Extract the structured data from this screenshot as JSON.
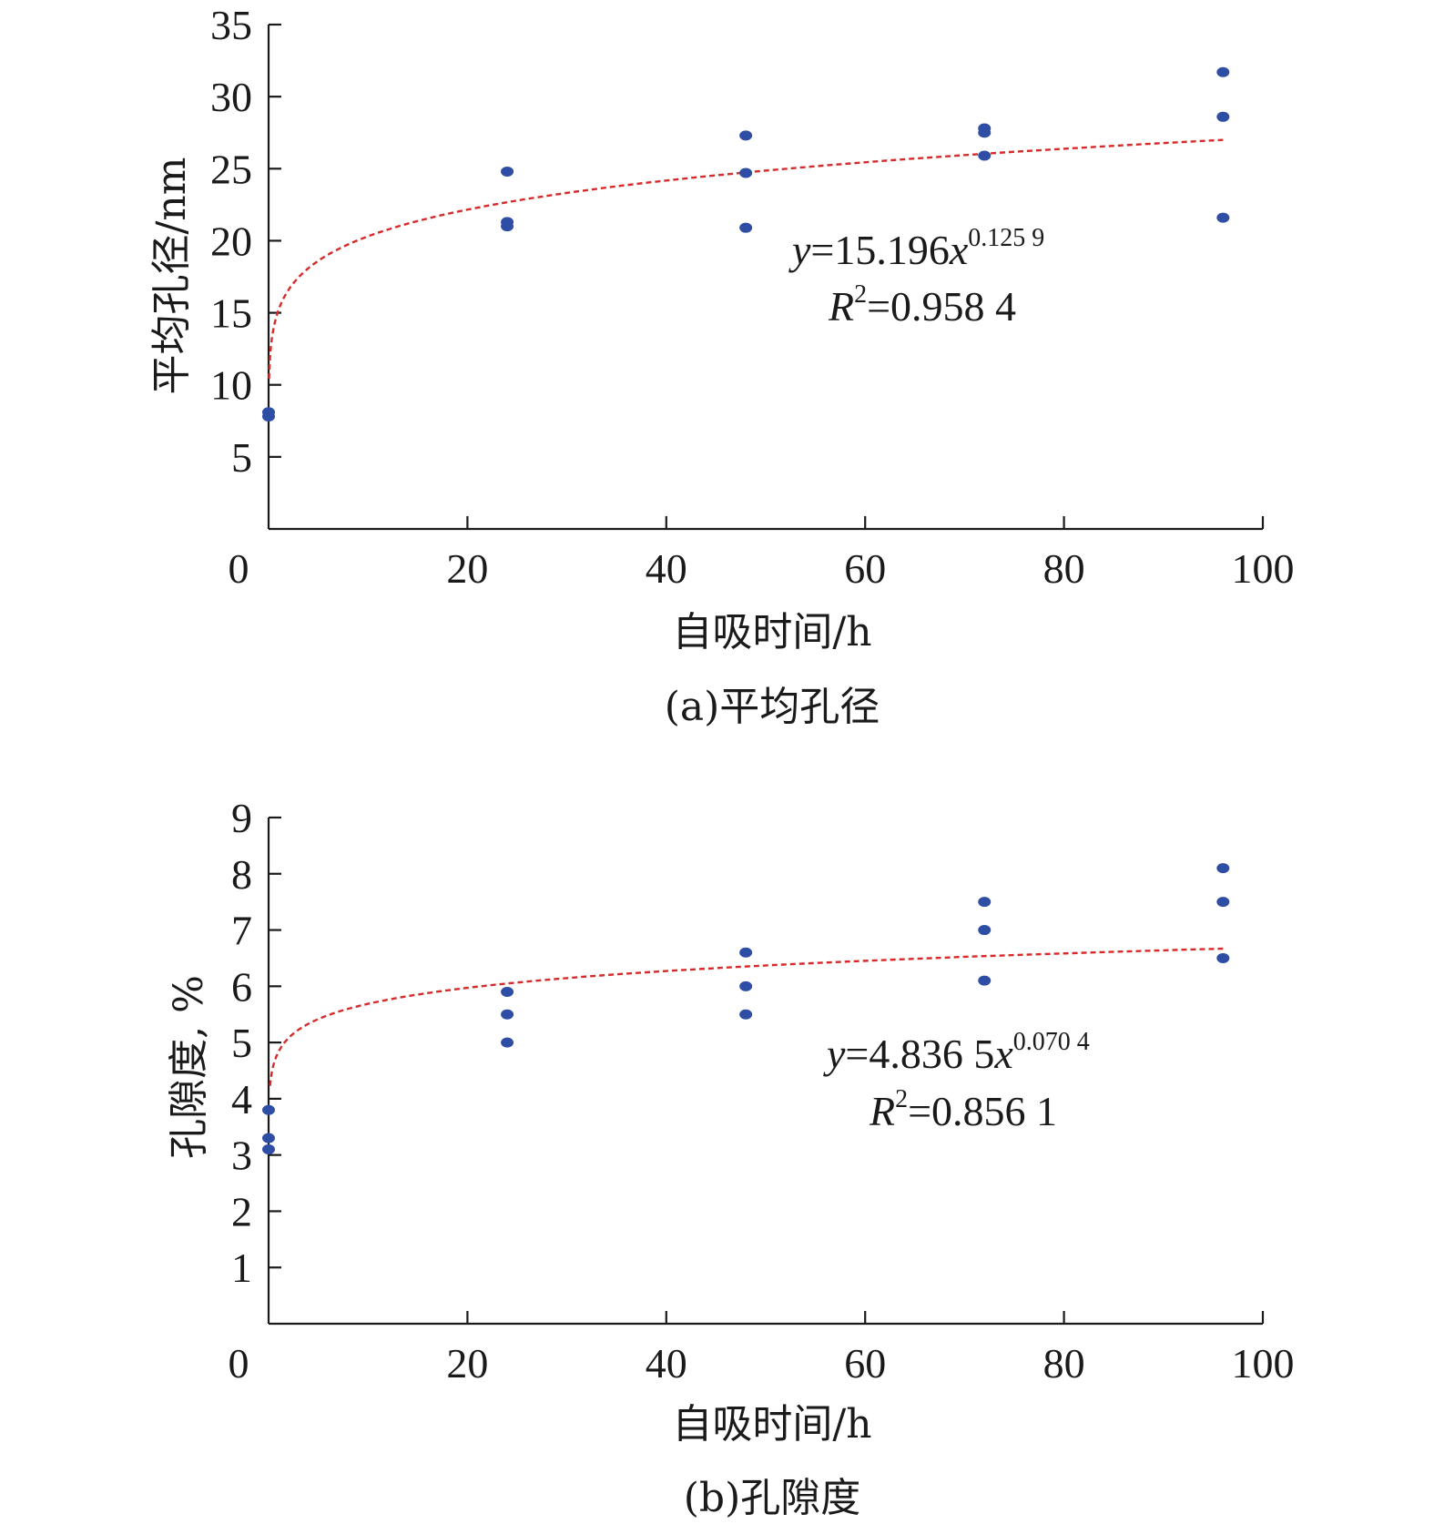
{
  "chart_data": [
    {
      "id": "a",
      "type": "scatter",
      "caption": "(a)平均孔径",
      "xlabel": "自吸时间/h",
      "ylabel": "平均孔径/nm",
      "xlim": [
        0,
        100
      ],
      "ylim": [
        0,
        35
      ],
      "xticks": [
        "0",
        "20",
        "40",
        "60",
        "80",
        "100"
      ],
      "yticks": [
        "5",
        "10",
        "15",
        "20",
        "25",
        "30",
        "35"
      ],
      "points": [
        [
          0,
          7.8
        ],
        [
          0,
          8.1
        ],
        [
          24,
          24.8
        ],
        [
          24,
          21.3
        ],
        [
          24,
          21.0
        ],
        [
          48,
          27.3
        ],
        [
          48,
          24.7
        ],
        [
          48,
          20.9
        ],
        [
          72,
          27.8
        ],
        [
          72,
          27.5
        ],
        [
          72,
          25.9
        ],
        [
          96,
          31.7
        ],
        [
          96,
          28.6
        ],
        [
          96,
          21.6
        ]
      ],
      "fit": {
        "coef": 15.196,
        "exp": 0.1259,
        "x_range": [
          0.05,
          96
        ]
      },
      "equation": {
        "y_var": "y",
        "eq_main": "=15.196",
        "x_var": "x",
        "exponent": "0.125 9",
        "r_var": "R",
        "r_sup": "2",
        "r_value": "=0.958 4"
      }
    },
    {
      "id": "b",
      "type": "scatter",
      "caption": "(b)孔隙度",
      "xlabel": "自吸时间/h",
      "ylabel": "孔隙度, %",
      "xlim": [
        0,
        100
      ],
      "ylim": [
        0,
        9
      ],
      "xticks": [
        "0",
        "20",
        "40",
        "60",
        "80",
        "100"
      ],
      "yticks": [
        "1",
        "2",
        "3",
        "4",
        "5",
        "6",
        "7",
        "8",
        "9"
      ],
      "points": [
        [
          0,
          3.8
        ],
        [
          0,
          3.3
        ],
        [
          0,
          3.1
        ],
        [
          24,
          5.9
        ],
        [
          24,
          5.5
        ],
        [
          24,
          5.0
        ],
        [
          48,
          6.6
        ],
        [
          48,
          6.0
        ],
        [
          48,
          5.5
        ],
        [
          72,
          7.5
        ],
        [
          72,
          7.0
        ],
        [
          72,
          6.1
        ],
        [
          96,
          8.1
        ],
        [
          96,
          7.5
        ],
        [
          96,
          6.5
        ]
      ],
      "fit": {
        "coef": 4.8365,
        "exp": 0.0704,
        "x_range": [
          0.15,
          96
        ]
      },
      "equation": {
        "y_var": "y",
        "eq_main": "=4.836 5",
        "x_var": "x",
        "exponent": "0.070 4",
        "r_var": "R",
        "r_sup": "2",
        "r_value": "=0.856 1"
      }
    }
  ],
  "colors": {
    "points": "#2e4ea6",
    "fit": "#d62b2b",
    "axis": "#1a1a1a"
  }
}
